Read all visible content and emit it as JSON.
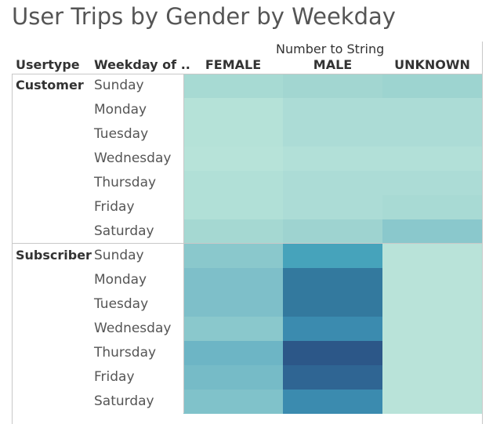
{
  "title": "User Trips by Gender by Weekday",
  "headers": {
    "usertype": "Usertype",
    "weekday": "Weekday of ..",
    "column_group": "Number to String"
  },
  "chart_data": {
    "type": "heatmap",
    "title": "User Trips by Gender by Weekday",
    "columns": [
      "FEMALE",
      "MALE",
      "UNKNOWN"
    ],
    "row_dimensions": [
      "Usertype",
      "Weekday of .."
    ],
    "groups": [
      {
        "name": "Customer",
        "rows": [
          {
            "weekday": "Sunday",
            "colors": [
              "#a7dad3",
              "#a2d6d1",
              "#9dd4d0"
            ]
          },
          {
            "weekday": "Monday",
            "colors": [
              "#b5e2d8",
              "#acdcd6",
              "#acdcd6"
            ]
          },
          {
            "weekday": "Tuesday",
            "colors": [
              "#b5e2d8",
              "#acdcd6",
              "#acdcd6"
            ]
          },
          {
            "weekday": "Wednesday",
            "colors": [
              "#b7e3d9",
              "#b2e0d8",
              "#b2e0d8"
            ]
          },
          {
            "weekday": "Thursday",
            "colors": [
              "#b1e0d7",
              "#acdcd6",
              "#acdcd6"
            ]
          },
          {
            "weekday": "Friday",
            "colors": [
              "#b1e0d7",
              "#acdcd6",
              "#a8dad4"
            ]
          },
          {
            "weekday": "Saturday",
            "colors": [
              "#a5d8d2",
              "#9ed3d0",
              "#8ac8cc"
            ]
          }
        ]
      },
      {
        "name": "Subscriber",
        "rows": [
          {
            "weekday": "Sunday",
            "colors": [
              "#8ac8cc",
              "#46a3bb",
              "#b9e3d9"
            ]
          },
          {
            "weekday": "Monday",
            "colors": [
              "#7ebfc9",
              "#33799e",
              "#b9e3d9"
            ]
          },
          {
            "weekday": "Tuesday",
            "colors": [
              "#7ebfc9",
              "#33799e",
              "#b9e3d9"
            ]
          },
          {
            "weekday": "Wednesday",
            "colors": [
              "#8ac8cc",
              "#3b8baf",
              "#b9e3d9"
            ]
          },
          {
            "weekday": "Thursday",
            "colors": [
              "#6db5c5",
              "#2c5788",
              "#b9e3d9"
            ]
          },
          {
            "weekday": "Friday",
            "colors": [
              "#76bbc7",
              "#2f6593",
              "#b9e3d9"
            ]
          },
          {
            "weekday": "Saturday",
            "colors": [
              "#80c2ca",
              "#3b8baf",
              "#b9e3d9"
            ]
          }
        ]
      }
    ]
  }
}
